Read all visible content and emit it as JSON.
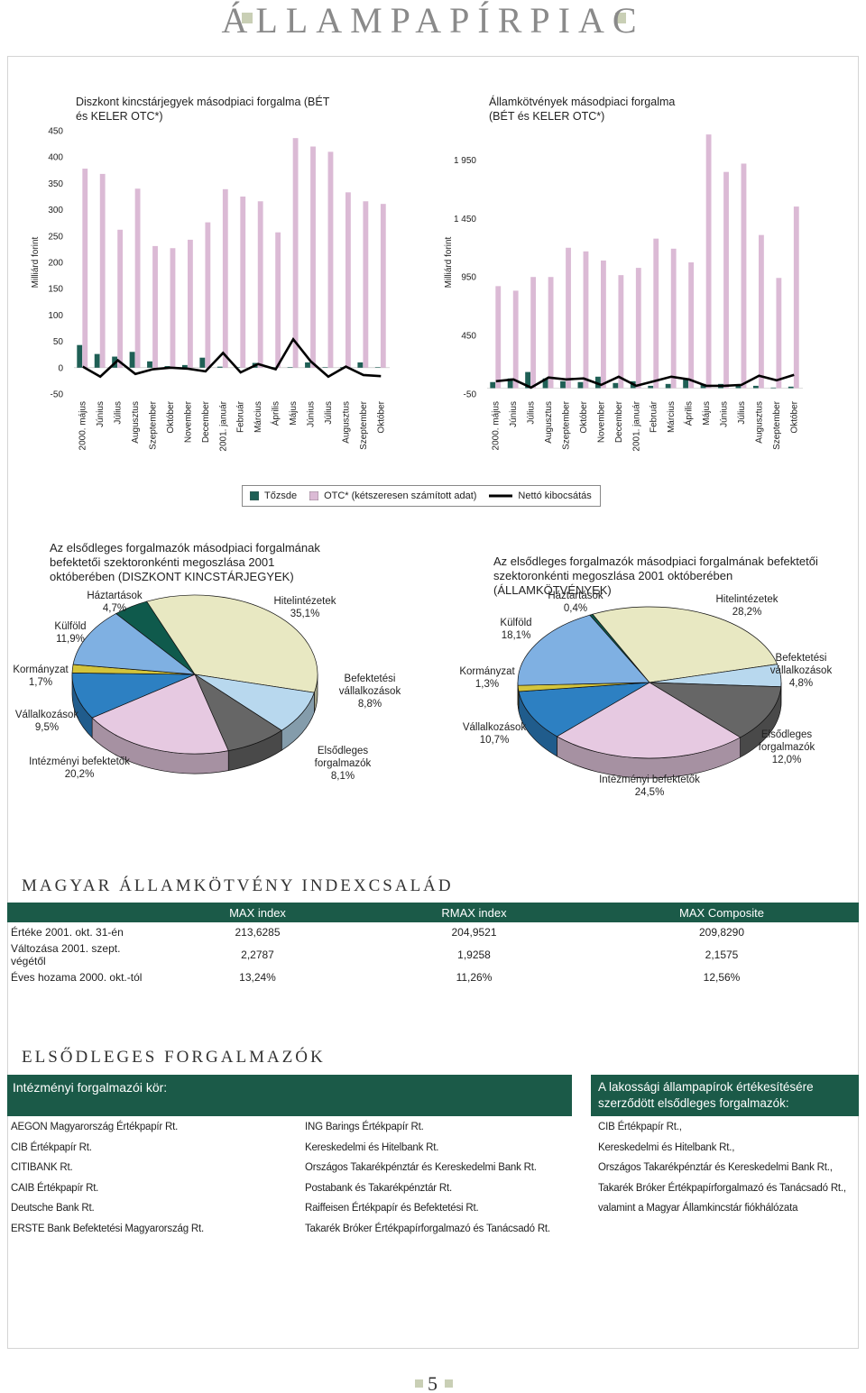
{
  "header": {
    "title": "ÁLLAMPAPÍRPIAC"
  },
  "chart_data": [
    {
      "type": "bar",
      "title": "Diszkont kincstárjegyek másodpiaci forgalma (BÉT és KELER OTC*)",
      "y_label": "Milliárd forint",
      "categories": [
        "2000. május",
        "Június",
        "Július",
        "Augusztus",
        "Szeptember",
        "Október",
        "November",
        "December",
        "2001. január",
        "Február",
        "Március",
        "Április",
        "Május",
        "Június",
        "Július",
        "Augusztus",
        "Szeptember",
        "Október"
      ],
      "series": [
        {
          "name": "Tőzsde",
          "type": "bar",
          "color": "#1f5f55",
          "values": [
            43,
            26,
            21,
            30,
            12,
            3,
            5,
            19,
            2,
            1,
            9,
            1,
            1,
            10,
            1,
            1,
            10,
            1
          ]
        },
        {
          "name": "OTC* (kétszeresen számított adat)",
          "type": "bar",
          "color": "#dbbad5",
          "values": [
            378,
            368,
            262,
            340,
            231,
            227,
            243,
            276,
            339,
            325,
            316,
            257,
            436,
            420,
            410,
            333,
            316,
            311
          ]
        },
        {
          "name": "Nettó kibocsátás",
          "type": "line",
          "color": "#000000",
          "values": [
            2,
            -17,
            14,
            -12,
            -3,
            0,
            -2,
            -7,
            28,
            -9,
            7,
            -3,
            54,
            12,
            -17,
            2,
            -14,
            -16
          ]
        }
      ],
      "ylim": [
        -50,
        450
      ],
      "yticks": [
        -50,
        0,
        50,
        100,
        150,
        200,
        250,
        300,
        350,
        400,
        450
      ]
    },
    {
      "type": "bar",
      "title": "Államkötvények másodpiaci forgalma (BÉT és KELER OTC*)",
      "y_label": "Milliárd forint",
      "categories": [
        "2000. május",
        "Június",
        "Július",
        "Augusztus",
        "Szeptember",
        "Október",
        "November",
        "December",
        "2001. január",
        "Február",
        "Március",
        "Április",
        "Május",
        "Június",
        "Július",
        "Augusztus",
        "Szeptember",
        "Október"
      ],
      "series": [
        {
          "type": "bar",
          "color": "#1f5f55",
          "values": [
            52,
            83,
            138,
            83,
            59,
            52,
            98,
            44,
            59,
            20,
            36,
            83,
            36,
            36,
            28,
            20,
            5,
            13
          ]
        },
        {
          "type": "bar",
          "color": "#dbbad5",
          "values": [
            872,
            833,
            950,
            950,
            1200,
            1169,
            1091,
            966,
            1028,
            1278,
            1192,
            1075,
            2168,
            1848,
            1919,
            1309,
            942,
            1552
          ]
        },
        {
          "type": "line",
          "color": "#000000",
          "values": [
            59,
            75,
            5,
            91,
            75,
            83,
            28,
            98,
            20,
            59,
            98,
            75,
            20,
            20,
            28,
            106,
            67,
            114
          ]
        }
      ],
      "ylim": [
        -50,
        2200
      ],
      "yticks": [
        -50,
        450,
        950,
        {
          "value": 1450,
          "label": "1 450"
        },
        {
          "value": 1950,
          "label": "1 950"
        }
      ]
    },
    {
      "type": "pie",
      "title": "Az elsődleges forgalmazók másodpiaci forgalmának befektetői szektoronkénti megoszlása 2001 októberében (DISZKONT KINCSTÁRJEGYEK)",
      "categories": [
        "Háztartások",
        "Hitelintézetek",
        "Befektetési vállalkozások",
        "Elsődleges forgalmazók",
        "Intézményi befektetők",
        "Vállalkozások",
        "Kormányzat",
        "Külföld"
      ],
      "values": [
        4.7,
        35.1,
        8.8,
        8.1,
        20.2,
        9.5,
        1.7,
        11.9
      ],
      "value_labels": [
        "4,7%",
        "35,1%",
        "8,8%",
        "8,1%",
        "20,2%",
        "9,5%",
        "1,7%",
        "11,9%"
      ],
      "colors": [
        "#0f5a4c",
        "#e8e8c2",
        "#b8d8ee",
        "#666666",
        "#e6c9e1",
        "#2d80c2",
        "#d3c43b",
        "#7fb0e2"
      ]
    },
    {
      "type": "pie",
      "title": "Az elsődleges forgalmazók másodpiaci forgalmának befektetői szektoronkénti megoszlása 2001 októberében (ÁLLAMKÖTVÉNYEK)",
      "categories": [
        "Háztartások",
        "Hitelintézetek",
        "Befektetési vállalkozások",
        "Elsődleges forgalmazók",
        "Intézményi befektetők",
        "Vállalkozások",
        "Kormányzat",
        "Külföld"
      ],
      "values": [
        0.4,
        28.2,
        4.8,
        12.0,
        24.5,
        10.7,
        1.3,
        18.1
      ],
      "value_labels": [
        "0,4%",
        "28,2%",
        "4,8%",
        "12,0%",
        "24,5%",
        "10,7%",
        "1,3%",
        "18,1%"
      ],
      "colors": [
        "#0f5a4c",
        "#e8e8c2",
        "#b8d8ee",
        "#666666",
        "#e6c9e1",
        "#2d80c2",
        "#d3c43b",
        "#7fb0e2"
      ]
    }
  ],
  "index_table": {
    "title": "MAGYAR ÁLLAMKÖTVÉNY INDEXCSALÁD",
    "columns": [
      "MAX index",
      "RMAX index",
      "MAX Composite"
    ],
    "rows": [
      [
        "Értéke 2001. okt. 31-én",
        "213,6285",
        "204,9521",
        "209,8290"
      ],
      [
        "Változása 2001. szept. végétől",
        "2,2787",
        "1,9258",
        "2,1575"
      ],
      [
        "Éves hozama 2000. okt.-tól",
        "13,24%",
        "11,26%",
        "12,56%"
      ]
    ]
  },
  "dealers": {
    "title": "ELSŐDLEGES FORGALMAZÓK",
    "institutional": {
      "heading": "Intézményi forgalmazói kör:",
      "columns": [
        [
          "AEGON Magyarország Értékpapír Rt.",
          "CIB Értékpapír Rt.",
          "CITIBANK Rt.",
          "CAIB Értékpapír Rt.",
          "Deutsche Bank Rt.",
          "ERSTE Bank Befektetési Magyarország Rt."
        ],
        [
          "ING Barings Értékpapír Rt.",
          "Kereskedelmi és Hitelbank Rt.",
          "Országos Takarékpénztár és Kereskedelmi Bank Rt.",
          "Postabank és Takarékpénztár Rt.",
          "Raiffeisen Értékpapír és Befektetési Rt.",
          "Takarék Bróker Értékpapírforgalmazó és Tanácsadó Rt."
        ]
      ]
    },
    "retail": {
      "heading": "A lakossági állampapírok értékesítésére szerződött elsődleges forgalmazók:",
      "items": [
        "CIB Értékpapír Rt.,",
        "Kereskedelmi és Hitelbank Rt.,",
        "Országos Takarékpénztár és Kereskedelmi Bank Rt.,",
        "Takarék Bróker Értékpapírforgalmazó és Tanácsadó Rt.,",
        "valamint a Magyar Államkincstár fiókhálózata"
      ]
    }
  },
  "page_number": 5
}
